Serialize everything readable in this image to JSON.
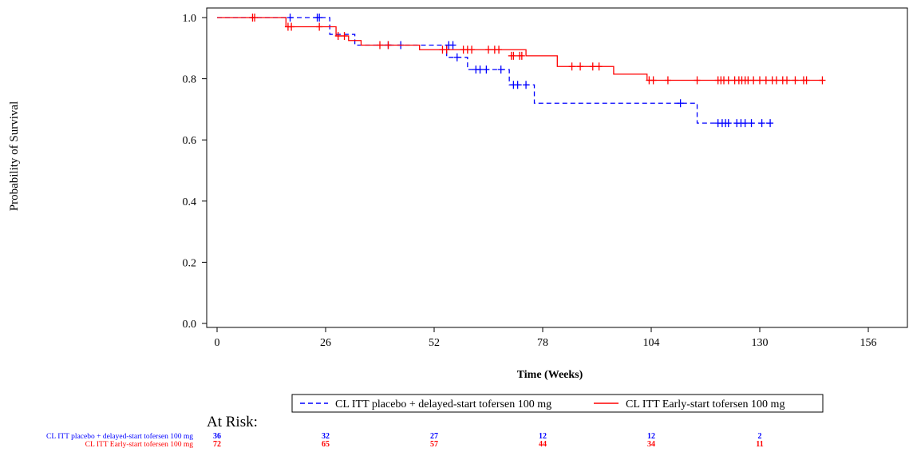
{
  "chart_data": {
    "type": "line",
    "subtype": "kaplan-meier",
    "xlabel": "Time (Weeks)",
    "ylabel": "Probability of Survival",
    "xlim": [
      0,
      156
    ],
    "ylim": [
      0,
      1
    ],
    "x_ticks": [
      "0",
      "26",
      "52",
      "78",
      "104",
      "130",
      "156"
    ],
    "y_ticks": [
      "0.0",
      "0.2",
      "0.4",
      "0.6",
      "0.8",
      "1.0"
    ],
    "grid": false,
    "legend_position": "bottom",
    "series": [
      {
        "name": "CL ITT placebo + delayed-start tofersen 100 mg",
        "color": "#0000ff",
        "line_style": "dashed",
        "steps": [
          [
            0,
            1.0
          ],
          [
            27,
            0.945
          ],
          [
            33,
            0.91
          ],
          [
            55,
            0.87
          ],
          [
            60,
            0.83
          ],
          [
            70,
            0.78
          ],
          [
            76,
            0.72
          ],
          [
            115,
            0.655
          ],
          [
            133,
            0.655
          ]
        ],
        "censored": [
          [
            17.5,
            1.0
          ],
          [
            24,
            1.0
          ],
          [
            24.5,
            1.0
          ],
          [
            41,
            0.91
          ],
          [
            44,
            0.91
          ],
          [
            55.5,
            0.91
          ],
          [
            56.5,
            0.91
          ],
          [
            57.5,
            0.87
          ],
          [
            62,
            0.83
          ],
          [
            63,
            0.83
          ],
          [
            64.5,
            0.83
          ],
          [
            68,
            0.83
          ],
          [
            71,
            0.78
          ],
          [
            72,
            0.78
          ],
          [
            74,
            0.78
          ],
          [
            111,
            0.72
          ],
          [
            120,
            0.655
          ],
          [
            121,
            0.655
          ],
          [
            121.8,
            0.655
          ],
          [
            122.5,
            0.655
          ],
          [
            124.5,
            0.655
          ],
          [
            125.5,
            0.655
          ],
          [
            126.5,
            0.655
          ],
          [
            128,
            0.655
          ],
          [
            130.5,
            0.655
          ],
          [
            132.5,
            0.655
          ]
        ]
      },
      {
        "name": "CL ITT Early-start tofersen 100 mg",
        "color": "#ff0000",
        "line_style": "solid",
        "steps": [
          [
            0,
            1.0
          ],
          [
            16.5,
            0.97
          ],
          [
            28.5,
            0.94
          ],
          [
            31.5,
            0.925
          ],
          [
            34.5,
            0.91
          ],
          [
            48.5,
            0.895
          ],
          [
            74,
            0.875
          ],
          [
            81.5,
            0.84
          ],
          [
            95,
            0.815
          ],
          [
            103,
            0.795
          ],
          [
            145,
            0.795
          ]
        ],
        "censored": [
          [
            8.5,
            1.0
          ],
          [
            9,
            1.0
          ],
          [
            17,
            0.97
          ],
          [
            17.8,
            0.97
          ],
          [
            24.5,
            0.97
          ],
          [
            29,
            0.94
          ],
          [
            30.5,
            0.94
          ],
          [
            39,
            0.91
          ],
          [
            41,
            0.91
          ],
          [
            54,
            0.895
          ],
          [
            55,
            0.895
          ],
          [
            59,
            0.895
          ],
          [
            60,
            0.895
          ],
          [
            61,
            0.895
          ],
          [
            65,
            0.895
          ],
          [
            66.5,
            0.895
          ],
          [
            67.5,
            0.895
          ],
          [
            70.5,
            0.875
          ],
          [
            71,
            0.875
          ],
          [
            72.5,
            0.875
          ],
          [
            73,
            0.875
          ],
          [
            85,
            0.84
          ],
          [
            87,
            0.84
          ],
          [
            90,
            0.84
          ],
          [
            91.5,
            0.84
          ],
          [
            103.5,
            0.795
          ],
          [
            104.5,
            0.795
          ],
          [
            108,
            0.795
          ],
          [
            115,
            0.795
          ],
          [
            120,
            0.795
          ],
          [
            120.7,
            0.795
          ],
          [
            121.4,
            0.795
          ],
          [
            122.5,
            0.795
          ],
          [
            124,
            0.795
          ],
          [
            125,
            0.795
          ],
          [
            125.7,
            0.795
          ],
          [
            126.5,
            0.795
          ],
          [
            127.2,
            0.795
          ],
          [
            128.5,
            0.795
          ],
          [
            130,
            0.795
          ],
          [
            131.5,
            0.795
          ],
          [
            133,
            0.795
          ],
          [
            134,
            0.795
          ],
          [
            135.5,
            0.795
          ],
          [
            136.5,
            0.795
          ],
          [
            138.5,
            0.795
          ],
          [
            140.5,
            0.795
          ],
          [
            141.2,
            0.795
          ],
          [
            145,
            0.795
          ]
        ]
      }
    ],
    "at_risk": {
      "title": "At Risk:",
      "times": [
        0,
        26,
        52,
        78,
        104,
        130
      ],
      "rows": [
        {
          "label": "CL ITT placebo + delayed-start tofersen 100 mg",
          "color": "#0000ff",
          "values": [
            "36",
            "32",
            "27",
            "12",
            "12",
            "2"
          ]
        },
        {
          "label": "CL ITT Early-start tofersen 100 mg",
          "color": "#ff0000",
          "values": [
            "72",
            "65",
            "57",
            "44",
            "34",
            "11"
          ]
        }
      ]
    }
  }
}
